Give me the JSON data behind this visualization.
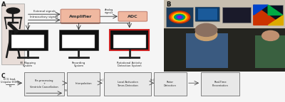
{
  "bg_color": "#f5f5f5",
  "panel_A_label": "A",
  "panel_B_label": "B",
  "panel_C_label": "C",
  "human_box_color": "#e8ddd8",
  "human_body_color": "#1a1a1a",
  "amplifier_fill": "#f0b8a0",
  "amplifier_edge": "#c08070",
  "adc_fill": "#f0b8a0",
  "adc_edge": "#c08070",
  "monitor_body": "#111111",
  "monitor_screen_white": "#ffffff",
  "red_box_edge": "#cc2222",
  "arrow_color": "#333333",
  "text_color": "#222222",
  "flow_box_fill": "#e8e8e8",
  "flow_box_edge": "#555555",
  "photo_bg": "#3a3a3a",
  "photo_ceiling": "#c8c0b0",
  "photo_wall": "#d0c8b8",
  "photo_person_body": "#4a6080",
  "photo_person_head": "#c8a878",
  "flow_boxes": [
    "Pre-processing\n+\nVentricle Cancellation",
    "Interpolation",
    "Local Activation\nTimes Detection",
    "Rotor\nDetection",
    "Real-Time\nPresentation"
  ],
  "between_labels": [
    "N",
    "J x J",
    "J x J"
  ],
  "input_lines": [
    "ECG lead,",
    "Unipolar EGMs",
    "———",
    "N"
  ],
  "external_signals_text": "External signals",
  "intracavitary_text": "Intracavitary signals",
  "analog_text": "Analog\nsignals",
  "amplifier_text": "Amplifier",
  "adc_text": "ADC",
  "systems": [
    "3D-Mapping\nSystem",
    "Recording\nSystem",
    "Rotational Activity\nDetection System"
  ]
}
